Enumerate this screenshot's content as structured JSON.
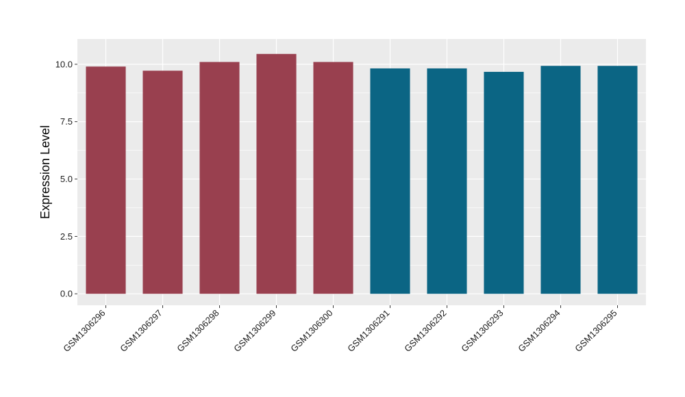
{
  "chart_data": {
    "type": "bar",
    "categories": [
      "GSM1306296",
      "GSM1306297",
      "GSM1306298",
      "GSM1306299",
      "GSM1306300",
      "GSM1306291",
      "GSM1306292",
      "GSM1306293",
      "GSM1306294",
      "GSM1306295"
    ],
    "values": [
      9.9,
      9.72,
      10.1,
      10.45,
      10.1,
      9.82,
      9.82,
      9.67,
      9.93,
      9.93
    ],
    "bar_colors": [
      "#99404F",
      "#99404F",
      "#99404F",
      "#99404F",
      "#99404F",
      "#0B6584",
      "#0B6584",
      "#0B6584",
      "#0B6584",
      "#0B6584"
    ],
    "title": "",
    "xlabel": "",
    "ylabel": "Expression Level",
    "ylim": [
      -0.5,
      11.1
    ],
    "yticks": [
      0,
      2.5,
      5,
      7.5,
      10
    ],
    "ytick_labels": [
      "0.0",
      "2.5",
      "5.0",
      "7.5",
      "10.0"
    ],
    "grid": true,
    "panel_color": "#EBEBEB",
    "grid_color": "#FFFFFF"
  }
}
